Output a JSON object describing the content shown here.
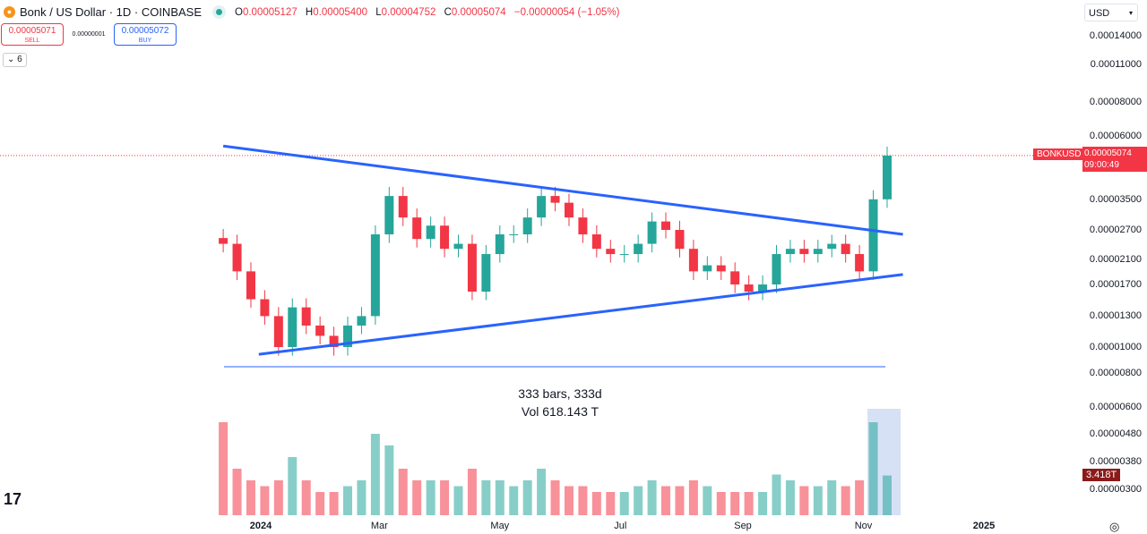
{
  "header": {
    "title": "Bonk / US Dollar · 1D · COINBASE",
    "open_label": "O",
    "open": "0.00005127",
    "high_label": "H",
    "high": "0.00005400",
    "low_label": "L",
    "low": "0.00004752",
    "close_label": "C",
    "close": "0.00005074",
    "change": "−0.00000054 (−1.05%)"
  },
  "trade": {
    "sell_price": "0.00005071",
    "sell_label": "SELL",
    "spread": "0.00000001",
    "buy_price": "0.00005072",
    "buy_label": "BUY"
  },
  "indicators_toggle": "6",
  "currency": "USD",
  "price_tag": {
    "symbol": "BONKUSD",
    "price": "0.00005074",
    "countdown": "09:00:49"
  },
  "volume_tag": "3.418T",
  "measure": {
    "line1": "333 bars, 333d",
    "line2": "Vol 618.143 T"
  },
  "colors": {
    "up": "#26a69a",
    "down": "#f23645",
    "trendline": "#2962ff"
  },
  "chart_data": {
    "type": "candlestick",
    "scale": "log",
    "xlim": [
      "2023-12-13",
      "2025-01-25"
    ],
    "ylim": [
      7.2e-06,
      0.00016
    ],
    "x_ticks": [
      {
        "label": "2024",
        "date": "2024-01-01"
      },
      {
        "label": "Mar",
        "date": "2024-03-01"
      },
      {
        "label": "May",
        "date": "2024-05-01"
      },
      {
        "label": "Jul",
        "date": "2024-07-01"
      },
      {
        "label": "Sep",
        "date": "2024-09-01"
      },
      {
        "label": "Nov",
        "date": "2024-11-01"
      },
      {
        "label": "2025",
        "date": "2025-01-01"
      }
    ],
    "y_ticks": [
      "0.00014000",
      "0.00011000",
      "0.00008000",
      "0.00006000",
      "0.00003500",
      "0.00002700",
      "0.00002100",
      "0.00001700",
      "0.00001300",
      "0.00001000",
      "0.00000800"
    ],
    "volume_axis_ticks": [
      "0.00000600",
      "0.00000480",
      "0.00000380",
      "0.00000300"
    ],
    "start_date": "2023-12-13",
    "interval_days": 7,
    "closes": [
      2.4e-05,
      1.9e-05,
      1.5e-05,
      1.3e-05,
      1e-05,
      1.4e-05,
      1.2e-05,
      1.1e-05,
      1e-05,
      1.2e-05,
      1.3e-05,
      2.6e-05,
      3.6e-05,
      3e-05,
      2.5e-05,
      2.8e-05,
      2.3e-05,
      2.4e-05,
      1.6e-05,
      2.2e-05,
      2.6e-05,
      2.6e-05,
      3e-05,
      3.6e-05,
      3.4e-05,
      3e-05,
      2.6e-05,
      2.3e-05,
      2.2e-05,
      2.2e-05,
      2.4e-05,
      2.9e-05,
      2.7e-05,
      2.3e-05,
      1.9e-05,
      2e-05,
      1.9e-05,
      1.7e-05,
      1.6e-05,
      1.7e-05,
      2.2e-05,
      2.3e-05,
      2.2e-05,
      2.3e-05,
      2.4e-05,
      2.2e-05,
      1.9e-05,
      3.5e-05,
      5.07e-05
    ],
    "volumes_T": [
      8,
      4,
      3,
      2.5,
      3,
      5,
      3,
      2,
      2,
      2.5,
      3,
      7,
      6,
      4,
      3,
      3,
      3,
      2.5,
      4,
      3,
      3,
      2.5,
      3,
      4,
      3,
      2.5,
      2.5,
      2,
      2,
      2,
      2.5,
      3,
      2.5,
      2.5,
      3,
      2.5,
      2,
      2,
      2,
      2,
      3.5,
      3,
      2.5,
      2.5,
      3,
      2.5,
      3,
      8,
      3.418
    ],
    "trendlines": [
      {
        "from": {
          "date": "2023-12-13",
          "price": 5.5e-05
        },
        "to": {
          "date": "2024-11-21",
          "price": 2.6e-05
        }
      },
      {
        "from": {
          "date": "2023-12-31",
          "price": 9.4e-06
        },
        "to": {
          "date": "2024-11-21",
          "price": 1.85e-05
        }
      }
    ]
  }
}
